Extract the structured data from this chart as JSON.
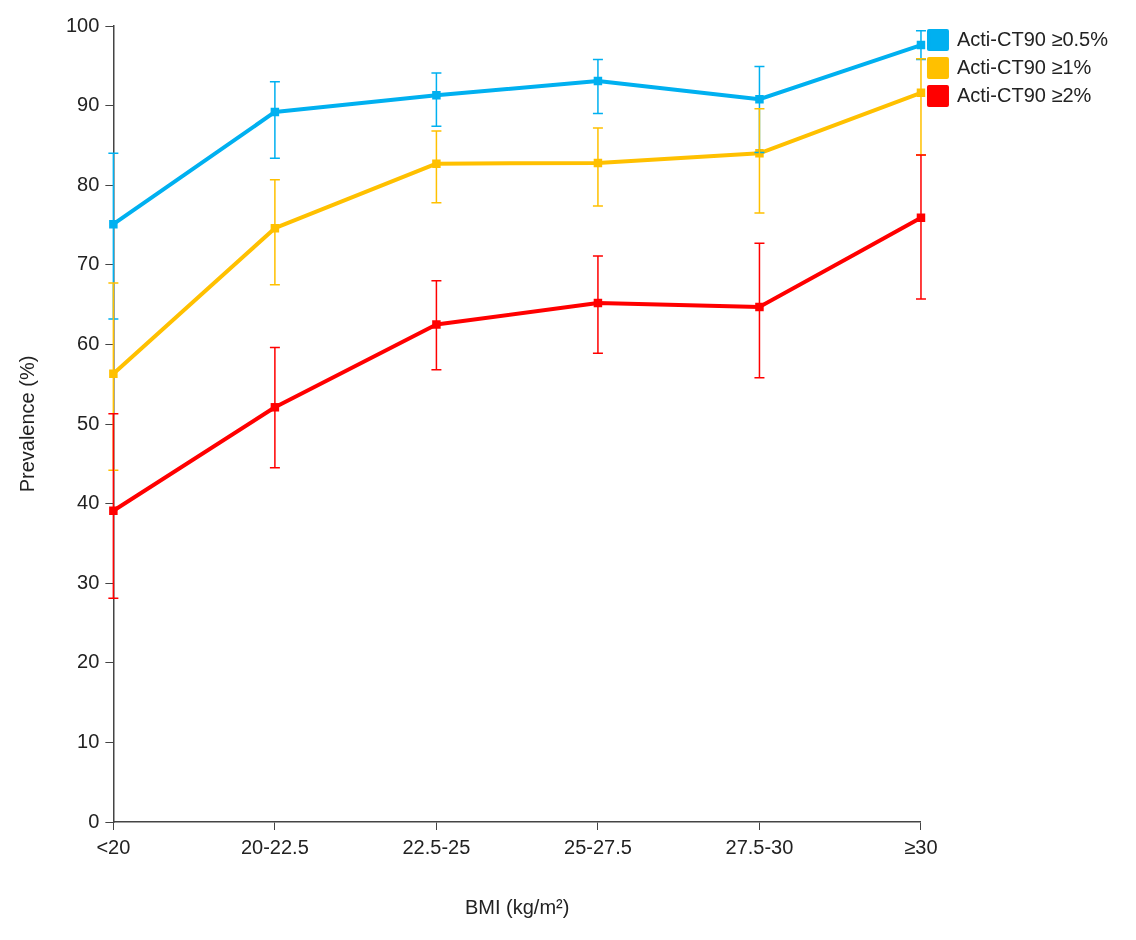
{
  "chart_data": {
    "type": "line",
    "xlabel": "BMI (kg/m²)",
    "ylabel": "Prevalence (%)",
    "categories": [
      "<20",
      "20-22.5",
      "22.5-25",
      "25-27.5",
      "27.5-30",
      "≥30"
    ],
    "series": [
      {
        "name": "Acti-CT90 ≥0.5%",
        "color": "#00b0f0",
        "values": [
          75.1,
          89.2,
          91.3,
          93.1,
          90.8,
          97.6
        ],
        "errors": [
          [
            63.2,
            84.0
          ],
          [
            83.4,
            93.0
          ],
          [
            87.4,
            94.1
          ],
          [
            89.0,
            95.8
          ],
          [
            84.1,
            94.9
          ],
          [
            95.8,
            99.4
          ]
        ]
      },
      {
        "name": "Acti-CT90 ≥1%",
        "color": "#ffc000",
        "values": [
          56.3,
          74.6,
          82.7,
          82.8,
          84.0,
          91.6
        ],
        "errors": [
          [
            44.2,
            67.7
          ],
          [
            67.5,
            80.7
          ],
          [
            77.8,
            86.8
          ],
          [
            77.4,
            87.2
          ],
          [
            76.5,
            89.6
          ],
          [
            83.8,
            95.9
          ]
        ]
      },
      {
        "name": "Acti-CT90 ≥2%",
        "color": "#ff0000",
        "values": [
          39.1,
          52.1,
          62.5,
          65.2,
          64.7,
          75.9
        ],
        "errors": [
          [
            28.1,
            51.3
          ],
          [
            44.5,
            59.6
          ],
          [
            56.8,
            68.0
          ],
          [
            58.9,
            71.1
          ],
          [
            55.8,
            72.7
          ],
          [
            65.7,
            83.8
          ]
        ]
      }
    ],
    "ylim": [
      0,
      100
    ],
    "yticks": [
      0,
      10,
      20,
      30,
      40,
      50,
      60,
      70,
      80,
      90,
      100
    ],
    "grid": false,
    "legend": "top right",
    "marker": "square",
    "line_style": "solid"
  }
}
